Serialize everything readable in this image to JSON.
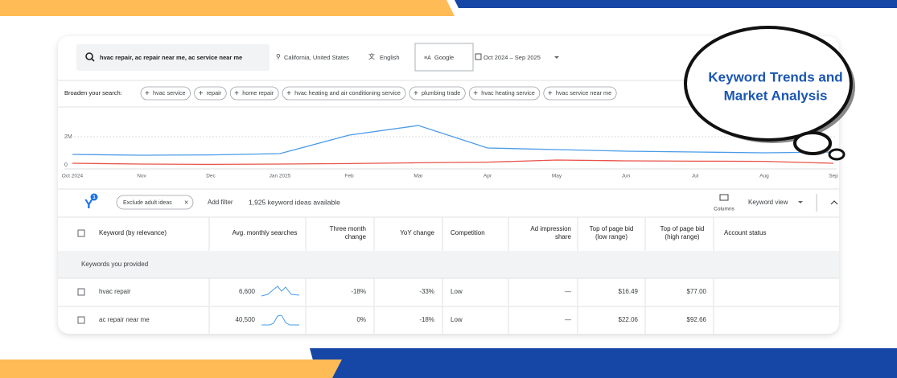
{
  "callout": {
    "lines": [
      "Keyword Trends and",
      "Market Analysis"
    ]
  },
  "search": {
    "query": "hvac repair, ac repair near me, ac service near me",
    "location": "California, United States",
    "language": "English",
    "network": "Google",
    "date_range": "Oct 2024 – Sep 2025"
  },
  "broaden": {
    "label": "Broaden your search:",
    "chips": [
      "hvac service",
      "repair",
      "home repair",
      "hvac heating and air conditioning service",
      "plumbing trade",
      "hvac heating service",
      "hvac service near me"
    ]
  },
  "chart_data": {
    "type": "line",
    "categories": [
      "Oct 2024",
      "Nov",
      "Dec",
      "Jan 2025",
      "Feb",
      "Mar",
      "Apr",
      "May",
      "Jun",
      "Jul",
      "Aug",
      "Sep"
    ],
    "series": [
      {
        "color": "#4a9be8",
        "values": [
          900000,
          850000,
          870000,
          950000,
          2100000,
          2700000,
          1300000,
          1200000,
          1100000,
          1050000,
          1000000,
          1050000
        ]
      },
      {
        "color": "#e8524a",
        "values": [
          350000,
          300000,
          280000,
          300000,
          330000,
          380000,
          420000,
          550000,
          500000,
          480000,
          470000,
          350000
        ]
      }
    ],
    "ylim": [
      0,
      3000000
    ],
    "yticks": [
      0,
      {
        "value": 2000000,
        "label": "2M"
      }
    ],
    "grid": true
  },
  "toolbar": {
    "filter_count": "1",
    "exclude_chip": "Exclude adult ideas",
    "add_filter": "Add filter",
    "ideas_count": "1,925 keyword ideas available",
    "columns": "Columns",
    "view": "Keyword view"
  },
  "table": {
    "headers": [
      [
        "Keyword (by relevance)"
      ],
      [
        "Avg. monthly searches"
      ],
      [
        "Three month",
        "change"
      ],
      [
        "YoY change"
      ],
      [
        "Competition"
      ],
      [
        "Ad impression",
        "share"
      ],
      [
        "Top of page bid",
        "(low range)"
      ],
      [
        "Top of page bid",
        "(high range)"
      ],
      [
        "Account status"
      ]
    ],
    "section": "Keywords you provided",
    "rows": [
      [
        "hvac repair",
        "6,600",
        "-18%",
        "-33%",
        "Low",
        "—",
        "$16.49",
        "$77.00"
      ],
      [
        "ac repair near me",
        "40,500",
        "0%",
        "-18%",
        "Low",
        "—",
        "$22.06",
        "$92.66"
      ]
    ]
  }
}
